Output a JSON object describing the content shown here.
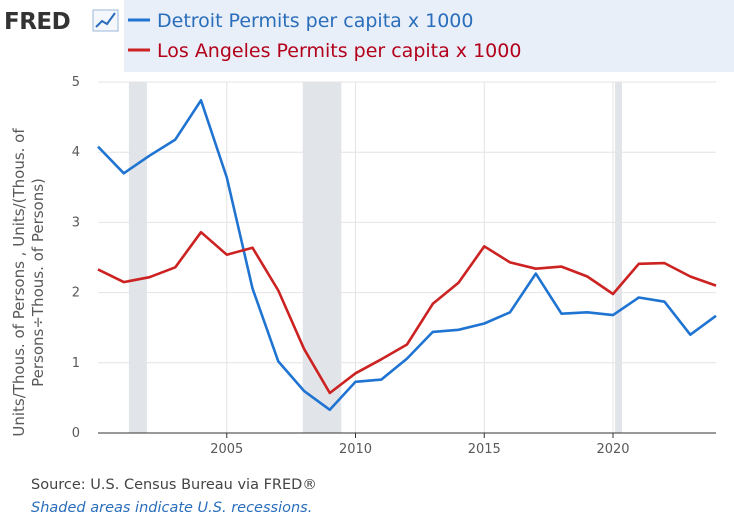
{
  "logo": {
    "text": "FRED"
  },
  "chart_data": {
    "type": "line",
    "ylabel": [
      "Units/Thous. of Persons , Units/(Thous. of",
      "Persons÷Thous. of Persons)"
    ],
    "xlim": [
      2000,
      2024
    ],
    "ylim": [
      0,
      5
    ],
    "yticks": [
      "0",
      "1",
      "2",
      "3",
      "4",
      "5"
    ],
    "xticks": [
      "2005",
      "2010",
      "2015",
      "2020"
    ],
    "grid": true,
    "legend_position": "top",
    "series": [
      {
        "name": "Detroit Permits per capita x 1000",
        "color": "#1f74d2",
        "x": [
          2000,
          2001,
          2002,
          2003,
          2004,
          2005,
          2006,
          2007,
          2008,
          2009,
          2010,
          2011,
          2012,
          2013,
          2014,
          2015,
          2016,
          2017,
          2018,
          2019,
          2020,
          2021,
          2022,
          2023,
          2024
        ],
        "y": [
          4.08,
          3.7,
          3.95,
          4.18,
          4.74,
          3.64,
          2.06,
          1.02,
          0.6,
          0.33,
          0.73,
          0.76,
          1.06,
          1.44,
          1.47,
          1.56,
          1.72,
          2.27,
          1.7,
          1.72,
          1.68,
          1.93,
          1.87,
          1.4,
          1.67
        ]
      },
      {
        "name": "Los Angeles Permits per capita x 1000",
        "color": "#cc2222",
        "x": [
          2000,
          2001,
          2002,
          2003,
          2004,
          2005,
          2006,
          2007,
          2008,
          2009,
          2010,
          2011,
          2012,
          2013,
          2014,
          2015,
          2016,
          2017,
          2018,
          2019,
          2020,
          2021,
          2022,
          2023,
          2024
        ],
        "y": [
          2.33,
          2.15,
          2.22,
          2.36,
          2.86,
          2.54,
          2.64,
          2.03,
          1.2,
          0.57,
          0.85,
          1.05,
          1.26,
          1.84,
          2.14,
          2.66,
          2.43,
          2.34,
          2.37,
          2.23,
          1.98,
          2.41,
          2.42,
          2.23,
          2.1
        ]
      }
    ],
    "recessions": [
      [
        2001.2,
        2001.9
      ],
      [
        2007.95,
        2009.45
      ],
      [
        2020.08,
        2020.35
      ]
    ],
    "recession_color": "#e1e4e8",
    "source": "Source: U.S. Census Bureau via FRED®",
    "note": "Shaded areas indicate U.S. recessions."
  }
}
